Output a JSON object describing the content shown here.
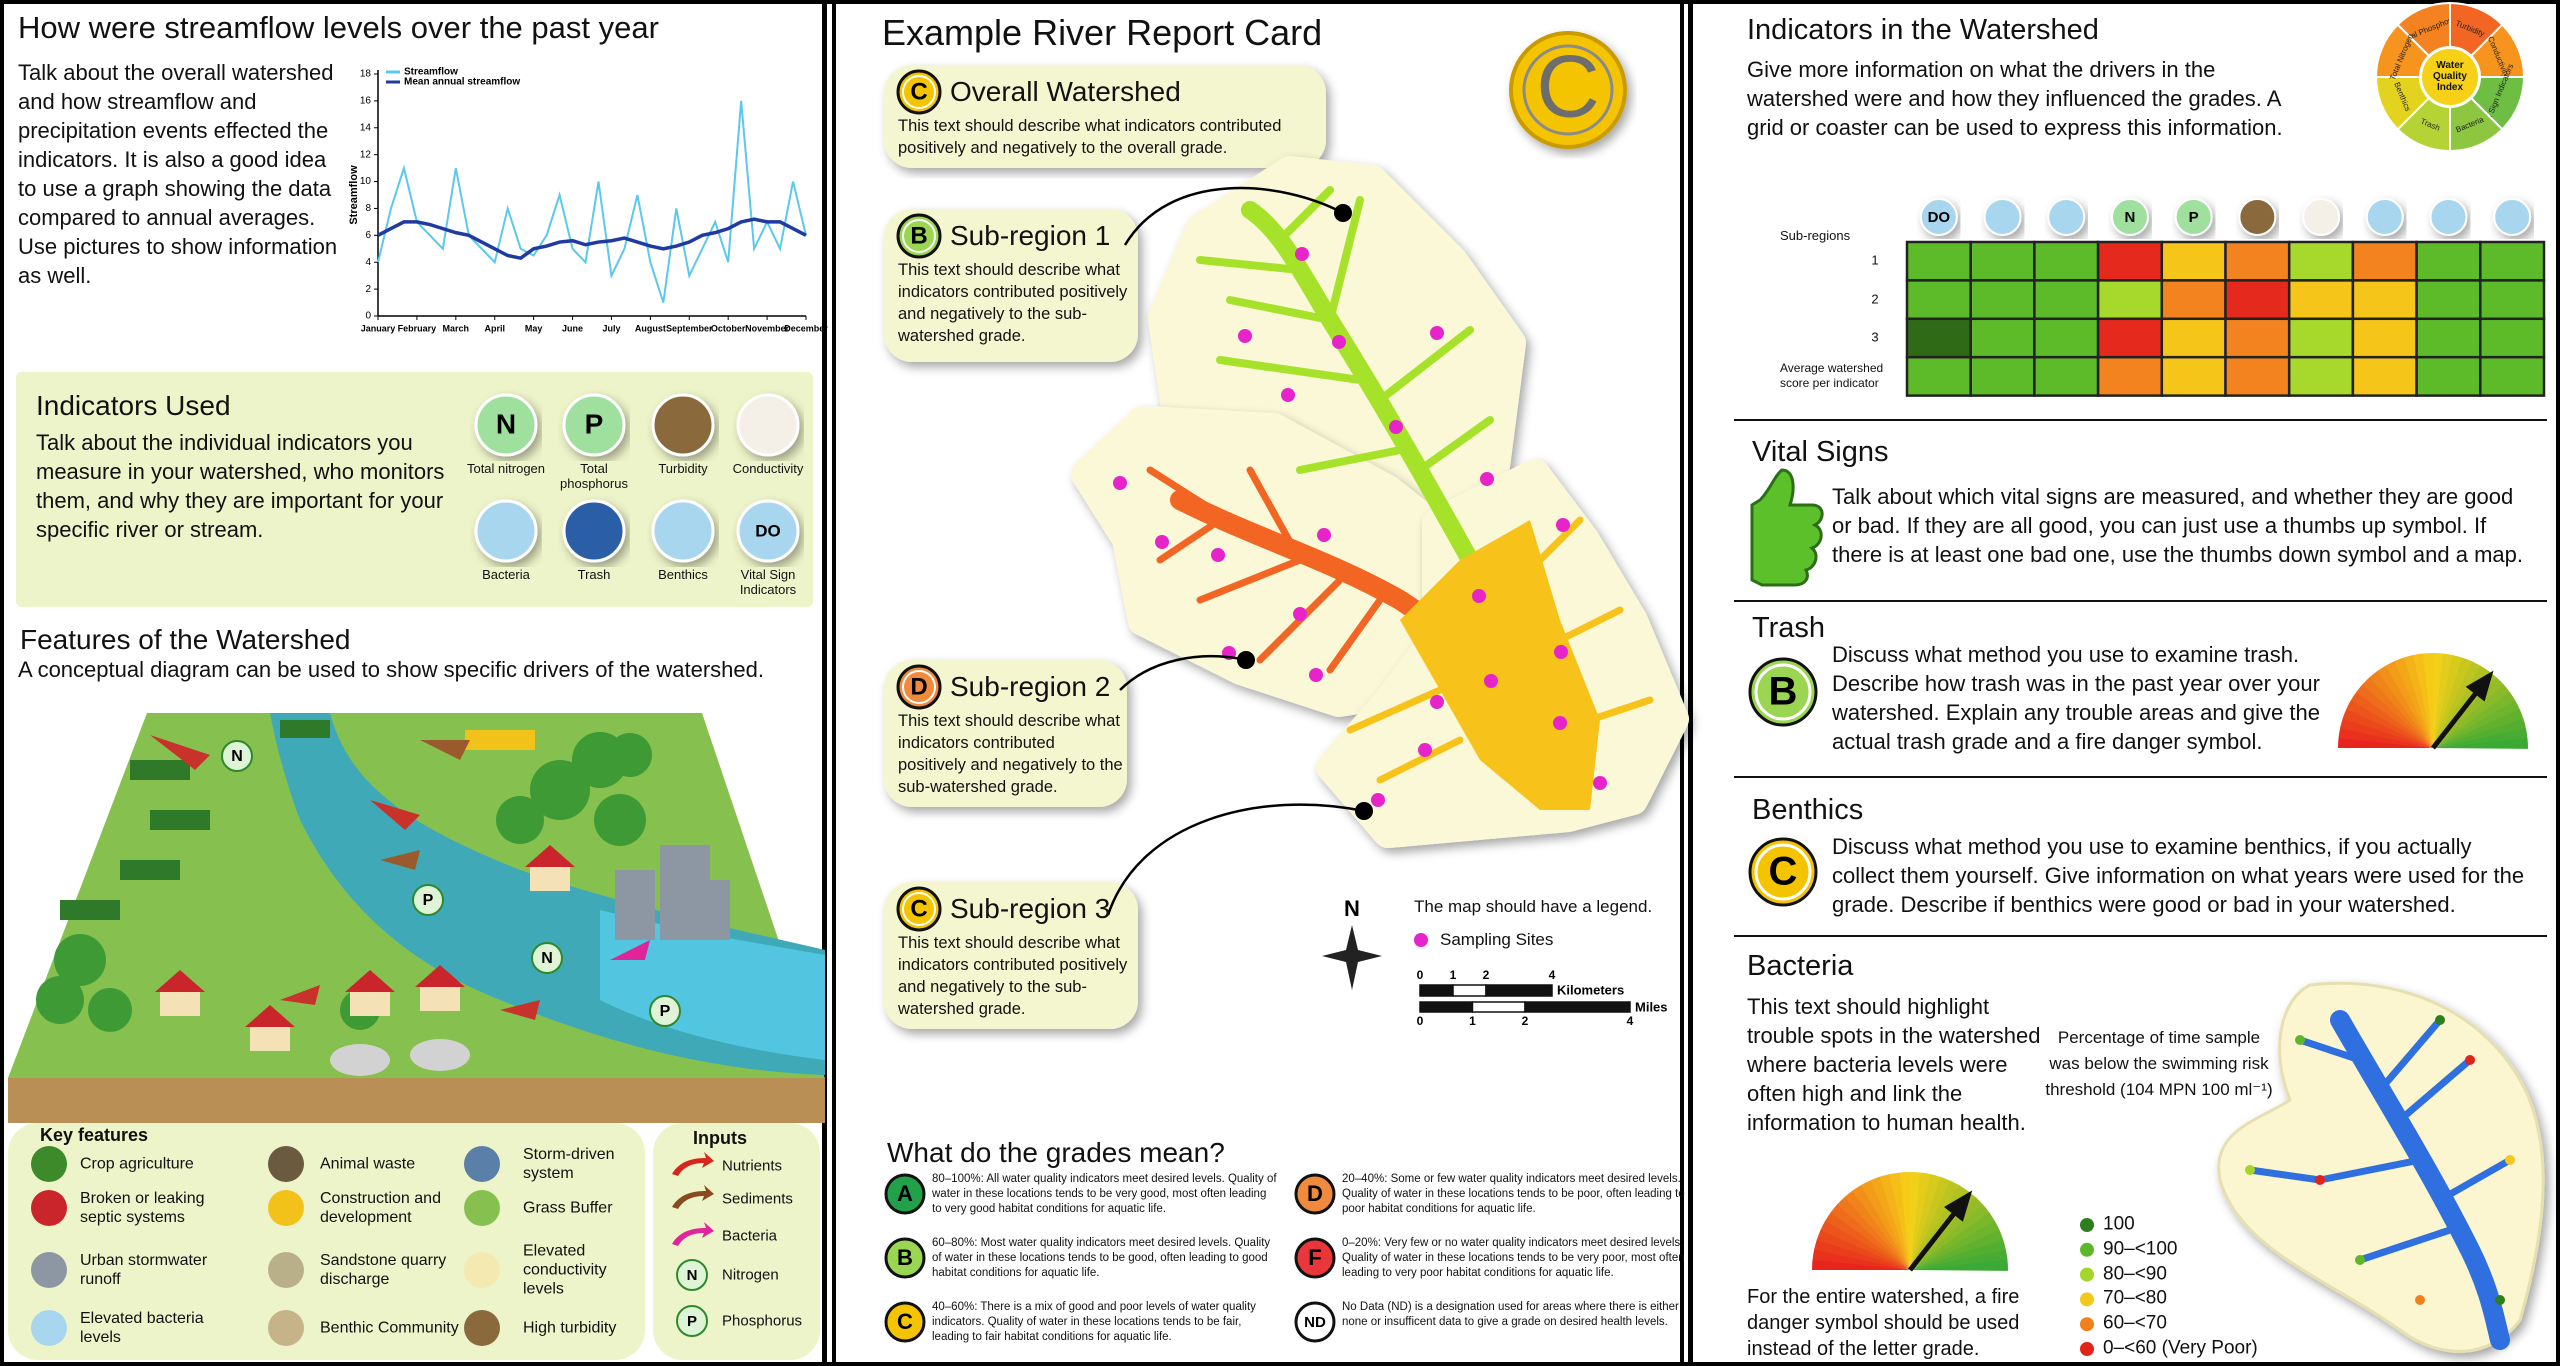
{
  "chart_data": {
    "type": "line",
    "ylabel": "Streamflow",
    "legend": "upper left",
    "x": [
      0,
      1,
      2,
      3,
      4,
      5,
      6,
      7,
      8,
      9,
      10,
      11,
      12,
      13,
      14,
      15,
      16,
      17,
      18,
      19,
      20,
      21,
      22,
      23,
      24,
      25,
      26,
      27,
      28,
      29,
      30,
      31,
      32,
      33
    ],
    "xlim": [
      0,
      33
    ],
    "xticks": [
      {
        "value": 0,
        "label": "January"
      },
      {
        "value": 3,
        "label": "February"
      },
      {
        "value": 6,
        "label": "March"
      },
      {
        "value": 9,
        "label": "April"
      },
      {
        "value": 12,
        "label": "May"
      },
      {
        "value": 15,
        "label": "June"
      },
      {
        "value": 18,
        "label": "July"
      },
      {
        "value": 21,
        "label": "August"
      },
      {
        "value": 24,
        "label": "September"
      },
      {
        "value": 27,
        "label": "October"
      },
      {
        "value": 30,
        "label": "November"
      },
      {
        "value": 33,
        "label": "December"
      }
    ],
    "ylim": [
      0,
      18
    ],
    "yticks": [
      0,
      2,
      4,
      6,
      8,
      10,
      12,
      14,
      16,
      18
    ],
    "series": [
      {
        "name": "Streamflow",
        "color": "#5bc8ec",
        "values": [
          4,
          8,
          11,
          7,
          6,
          5,
          11,
          6,
          5,
          4,
          8,
          5,
          4.5,
          6,
          9,
          5,
          4,
          10,
          3,
          5,
          9,
          4,
          1,
          8,
          3,
          5,
          7,
          4,
          16,
          5,
          7,
          5,
          10,
          6
        ]
      },
      {
        "name": "Mean annual streamflow",
        "color": "#1f3aa0",
        "values": [
          6,
          6.5,
          7,
          7,
          6.8,
          6.5,
          6.2,
          6,
          5.5,
          5,
          4.5,
          4.3,
          5,
          5.2,
          5.5,
          5.6,
          5.3,
          5.5,
          5.6,
          5.8,
          5.5,
          5.2,
          5,
          5.2,
          5.5,
          6,
          6.2,
          6.5,
          7,
          7.2,
          7,
          7,
          6.5,
          6
        ]
      }
    ]
  },
  "left": {
    "title": "How were streamflow levels over the past year",
    "intro": "Talk about the overall watershed and how streamflow and precipitation events effected the indicators. It is also a good idea to use a graph showing the data compared to annual averages. Use pictures to show information as well.",
    "indicators": {
      "title": "Indicators Used",
      "text": "Talk about the individual indicators you measure in your watershed, who monitors them, and why they are important for your specific river or stream.",
      "items": [
        {
          "letter": "N",
          "label": "Total nitrogen"
        },
        {
          "letter": "P",
          "label": "Total phosphorus"
        },
        {
          "label": "Turbidity"
        },
        {
          "label": "Conductivity"
        },
        {
          "label": "Bacteria"
        },
        {
          "label": "Trash"
        },
        {
          "label": "Benthics"
        },
        {
          "letter": "DO",
          "label": "Vital Sign Indicators"
        }
      ]
    },
    "features": {
      "title": "Features of the Watershed",
      "subtitle": "A conceptual diagram can be used to show specific drivers of the watershed.",
      "diagram_labels": [
        "N",
        "P",
        "N",
        "P"
      ]
    },
    "key_features": {
      "title": "Key features",
      "items": [
        "Crop agriculture",
        "Broken or leaking septic systems",
        "Urban stormwater runoff",
        "Elevated bacteria levels",
        "Animal waste",
        "Construction and development",
        "Sandstone quarry discharge",
        "Benthic Community",
        "Storm-driven system",
        "Grass Buffer",
        "Elevated conductivity levels",
        "High turbidity"
      ]
    },
    "inputs": {
      "title": "Inputs",
      "items": [
        "Nutrients",
        "Sediments",
        "Bacteria",
        "Nitrogen",
        "Phosphorus"
      ],
      "letters": [
        "N",
        "P"
      ]
    }
  },
  "report": {
    "title": "Example River Report Card",
    "grade": "C",
    "regions": [
      {
        "grade": "C",
        "name": "Overall Watershed",
        "text": "This text should describe what indicators contributed positively and negatively to the overall grade."
      },
      {
        "grade": "B",
        "name": "Sub-region 1",
        "text": "This text should describe what indicators contributed positively and negatively to the sub-watershed grade."
      },
      {
        "grade": "D",
        "name": "Sub-region 2",
        "text": "This text should describe what indicators contributed positively and negatively to the sub-watershed grade."
      },
      {
        "grade": "C",
        "name": "Sub-region 3",
        "text": "This text should describe what indicators contributed positively and negatively to the sub-watershed grade."
      }
    ],
    "map_legend": {
      "north": "N",
      "note": "The map should have a legend.",
      "sampling": "Sampling Sites",
      "km_ticks": [
        0,
        1,
        2,
        4
      ],
      "km_label": "Kilometers",
      "mi_ticks": [
        0,
        1,
        2,
        4
      ],
      "mi_label": "Miles"
    },
    "grades": {
      "title": "What do the grades mean?",
      "items": [
        {
          "grade": "A",
          "color": "#22a04a",
          "text": "80–100%: All water quality indicators meet desired levels. Quality of water in these locations tends to be very good, most often leading to very good habitat conditions for aquatic life."
        },
        {
          "grade": "B",
          "color": "#9ad651",
          "text": "60–80%: Most water quality indicators meet desired levels. Quality of water in these locations tends to be good, often leading to good habitat conditions for aquatic life."
        },
        {
          "grade": "C",
          "color": "#f5c400",
          "text": "40–60%: There is a mix of good and poor levels of water quality indicators. Quality of water in these locations tends to be fair, leading to fair habitat conditions for aquatic life."
        },
        {
          "grade": "D",
          "color": "#f08a3c",
          "text": "20–40%: Some or few water quality indicators meet desired levels. Quality of water in these locations tends to be poor, often leading to poor habitat conditions for aquatic life."
        },
        {
          "grade": "F",
          "color": "#e8363a",
          "text": "0–20%: Very few or no water quality indicators meet desired levels. Quality of water in these locations tends to be very poor, most often leading to very poor habitat conditions for aquatic life."
        },
        {
          "grade": "ND",
          "color": "#ffffff",
          "text": "No Data (ND) is a designation used for areas where there is either none or insufficent data to give a grade on desired health levels."
        }
      ]
    }
  },
  "right": {
    "indicators": {
      "title": "Indicators in the Watershed",
      "text": "Give more information on what the drivers in the watershed were and how they influenced the grades. A grid or coaster can be used to express this information.",
      "wheel": {
        "center": "Water Quality Index",
        "segments": [
          {
            "label": "Total Phosphorus",
            "color": "#f58220"
          },
          {
            "label": "Turbidity",
            "color": "#f26522"
          },
          {
            "label": "Conductivity",
            "color": "#f7941d"
          },
          {
            "label": "Vital Sign Indicators",
            "color": "#6fbe44"
          },
          {
            "label": "Bacteria",
            "color": "#8dc63f"
          },
          {
            "label": "Trash",
            "color": "#b5d334"
          },
          {
            "label": "Benthics",
            "color": "#e4d31e"
          },
          {
            "label": "Total Nitrogen",
            "color": "#f7941d"
          }
        ]
      },
      "grid": {
        "row_header": "Sub-regions",
        "icon_labels": [
          "DO",
          "N",
          "P"
        ],
        "rows": [
          {
            "label": "1",
            "colors": [
              "#5dbb2a",
              "#5dbb2a",
              "#5dbb2a",
              "#e52a1d",
              "#f5c51a",
              "#f2831f",
              "#a6d92b",
              "#f2831f",
              "#5dbb2a",
              "#5dbb2a"
            ]
          },
          {
            "label": "2",
            "colors": [
              "#5dbb2a",
              "#5dbb2a",
              "#5dbb2a",
              "#a6d92b",
              "#f2831f",
              "#e52a1d",
              "#f5c51a",
              "#f5c51a",
              "#5dbb2a",
              "#5dbb2a"
            ]
          },
          {
            "label": "3",
            "colors": [
              "#2f6b17",
              "#5dbb2a",
              "#5dbb2a",
              "#e52a1d",
              "#f5c51a",
              "#f2831f",
              "#a6d92b",
              "#f5c51a",
              "#5dbb2a",
              "#5dbb2a"
            ]
          },
          {
            "label": "Average watershed score per indicator",
            "colors": [
              "#5dbb2a",
              "#5dbb2a",
              "#5dbb2a",
              "#f2831f",
              "#f5c51a",
              "#f2831f",
              "#a6d92b",
              "#f5c51a",
              "#5dbb2a",
              "#5dbb2a"
            ]
          }
        ]
      }
    },
    "vital_signs": {
      "title": "Vital Signs",
      "text": "Talk about which vital signs are measured, and whether they are good or bad. If they are all good, you can just use a thumbs up symbol. If there is at least one bad one, use the thumbs down symbol and a map."
    },
    "trash": {
      "title": "Trash",
      "grade": "B",
      "text": "Discuss what method you use to examine trash. Describe how trash was in the past year over your watershed. Explain any trouble areas and give the actual trash grade and a fire danger symbol."
    },
    "benthics": {
      "title": "Benthics",
      "grade": "C",
      "text": "Discuss what method you use to examine benthics, if you actually collect them yourself. Give information on what years were used for the grade. Describe if benthics were good or bad in your watershed."
    },
    "bacteria": {
      "title": "Bacteria",
      "text": "This text should highlight trouble spots in the watershed where bacteria levels were often high and link the information to human health.",
      "threshold_note": "Percentage of time sample was below the swimming risk threshold (104 MPN 100 ml⁻¹)",
      "footnote": "For the entire watershed, a fire danger symbol should be used instead of the letter grade.",
      "legend": [
        {
          "label": "100",
          "color": "#2e7d1e"
        },
        {
          "label": "90–<100",
          "color": "#5cb82a"
        },
        {
          "label": "80–<90",
          "color": "#a3d52a"
        },
        {
          "label": "70–<80",
          "color": "#f2c81a"
        },
        {
          "label": "60–<70",
          "color": "#f0821e"
        },
        {
          "label": "0–<60 (Very Poor)",
          "color": "#e2231a"
        }
      ]
    }
  }
}
